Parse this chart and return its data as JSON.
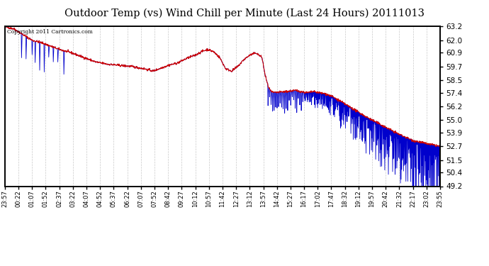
{
  "title": "Outdoor Temp (vs) Wind Chill per Minute (Last 24 Hours) 20111013",
  "copyright_text": "Copyright 2011 Cartronics.com",
  "background_color": "#ffffff",
  "plot_bg_color": "#ffffff",
  "grid_color": "#bbbbbb",
  "red_line_color": "#cc0000",
  "blue_line_color": "#0000cc",
  "title_fontsize": 11,
  "ylim": [
    49.2,
    63.2
  ],
  "yticks": [
    49.2,
    50.4,
    51.5,
    52.7,
    53.9,
    55.0,
    56.2,
    57.4,
    58.5,
    59.7,
    60.9,
    62.0,
    63.2
  ],
  "xtick_labels": [
    "23:57",
    "00:22",
    "01:07",
    "01:52",
    "02:37",
    "03:22",
    "04:07",
    "04:52",
    "05:37",
    "06:22",
    "07:07",
    "07:52",
    "08:42",
    "09:27",
    "10:12",
    "10:57",
    "11:42",
    "12:27",
    "13:12",
    "13:57",
    "14:42",
    "15:27",
    "16:17",
    "17:02",
    "17:47",
    "18:32",
    "19:12",
    "19:57",
    "20:42",
    "21:32",
    "22:17",
    "23:02",
    "23:55"
  ],
  "n_points": 1440,
  "seed": 42
}
